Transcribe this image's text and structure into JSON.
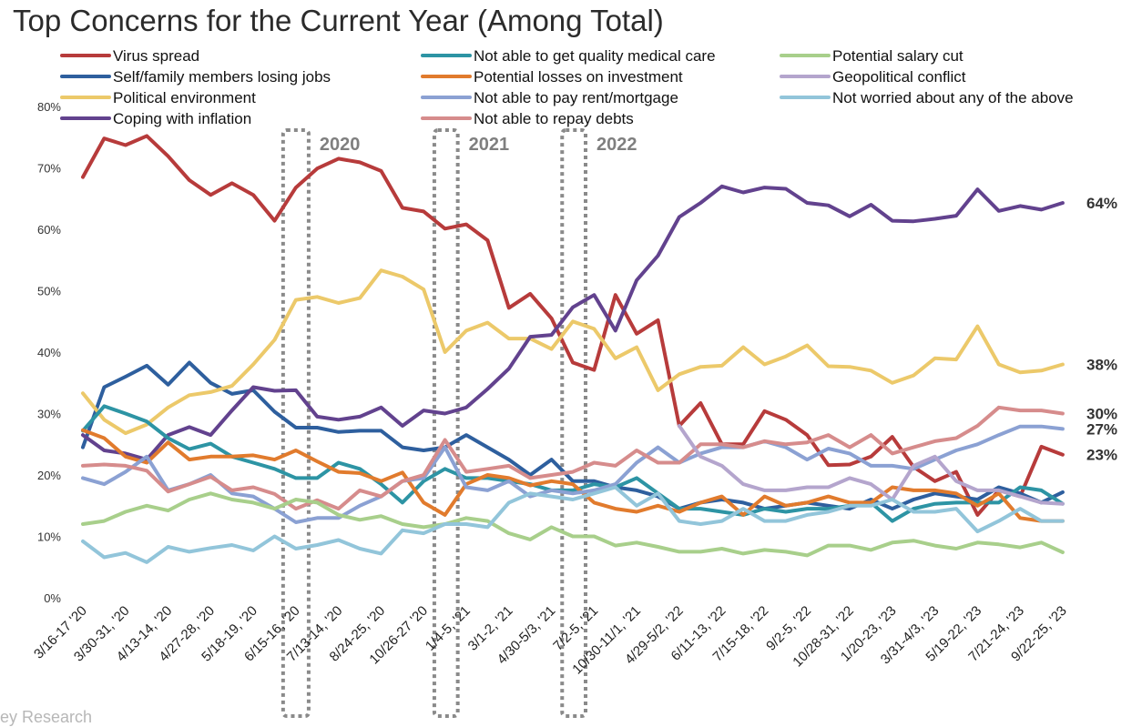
{
  "chart_data": {
    "type": "line",
    "title": "Top Concerns for the Current Year (Among Total)",
    "source_text": "ey Research",
    "ylim": [
      0,
      80
    ],
    "yticks": [
      0,
      10,
      20,
      30,
      40,
      50,
      60,
      70,
      80
    ],
    "ytick_labels": [
      "0%",
      "10%",
      "20%",
      "30%",
      "40%",
      "50%",
      "60%",
      "70%",
      "80%"
    ],
    "x_tick_labels": [
      "3/16-17 '20",
      "3/30-31, '20",
      "4/13-14, '20",
      "4/27-28, '20",
      "5/18-19, '20",
      "6/15-16, '20",
      "7/13-14, '20",
      "8/24-25, '20",
      "10/26-27 '20",
      "1/4-5, '21",
      "3/1-2, '21",
      "4/30-5/3, '21",
      "7/2-5, '21",
      "10/30-11/1, '21",
      "4/29-5/2, '22",
      "6/11-13, '22",
      "7/15-18, '22",
      "9/2-5, '22",
      "10/28-31, '22",
      "1/20-23, '23",
      "3/31-4/3, '23",
      "5/19-22, '23",
      "7/21-24, '23",
      "9/22-25, '23"
    ],
    "legend_position": "top",
    "year_markers": [
      {
        "label": "2020",
        "from_index": 9.4,
        "to_index": 10.6
      },
      {
        "label": "2021",
        "from_index": 16.5,
        "to_index": 17.6
      },
      {
        "label": "2022",
        "from_index": 22.5,
        "to_index": 23.6
      }
    ],
    "series": [
      {
        "name": "Virus spread",
        "color": "#b73b3b",
        "end_label": "23%",
        "values": [
          68.5,
          74.8,
          73.7,
          75.2,
          71.9,
          68.0,
          65.6,
          67.5,
          65.6,
          61.4,
          66.8,
          69.9,
          71.5,
          70.9,
          69.5,
          63.5,
          62.9,
          60.1,
          60.8,
          58.2,
          47.2,
          49.5,
          45.5,
          38.3,
          37.1,
          49.3,
          43.0,
          45.2,
          28.0,
          31.7,
          25.0,
          25.0,
          30.4,
          29.0,
          26.5,
          21.6,
          21.7,
          23.0,
          26.2,
          21.3,
          19.0,
          20.5,
          13.5,
          17.5,
          16.5,
          24.6,
          23.3
        ]
      },
      {
        "name": "Self/family members losing jobs",
        "color": "#2e5f9e",
        "values": [
          24.5,
          34.3,
          36.0,
          37.8,
          34.7,
          38.3,
          35.0,
          33.2,
          33.8,
          30.3,
          27.7,
          27.7,
          27.0,
          27.2,
          27.2,
          24.5,
          24.0,
          24.5,
          26.5,
          24.5,
          22.5,
          20.0,
          22.5,
          19.0,
          19.0,
          18.0,
          17.5,
          16.5,
          14.5,
          15.5,
          16.0,
          15.5,
          14.5,
          15.0,
          15.5,
          15.0,
          14.5,
          16.0,
          14.5,
          16.0,
          17.0,
          16.5,
          16.0,
          18.0,
          17.0,
          15.5,
          17.2
        ]
      },
      {
        "name": "Political environment",
        "color": "#ecc96a",
        "end_label": "38%",
        "values": [
          33.3,
          29.0,
          26.8,
          28.2,
          31.0,
          33.0,
          33.5,
          34.5,
          38.0,
          42.0,
          48.5,
          49.0,
          48.0,
          48.8,
          53.3,
          52.3,
          50.2,
          40.0,
          43.5,
          44.8,
          42.2,
          42.2,
          40.5,
          45.0,
          43.8,
          39.0,
          40.8,
          33.8,
          36.4,
          37.6,
          37.8,
          40.8,
          38.0,
          39.3,
          41.1,
          37.7,
          37.6,
          37.0,
          35.0,
          36.2,
          39.0,
          38.8,
          44.2,
          38.0,
          36.7,
          37.0,
          38.0
        ]
      },
      {
        "name": "Coping with inflation",
        "color": "#62428e",
        "end_label": "64%",
        "values": [
          26.5,
          24.0,
          23.5,
          22.5,
          26.5,
          27.8,
          26.5,
          30.5,
          34.3,
          33.7,
          33.8,
          29.5,
          29.0,
          29.5,
          31.0,
          28.0,
          30.5,
          30.0,
          31.0,
          34.0,
          37.3,
          42.5,
          42.8,
          47.3,
          49.3,
          43.5,
          51.7,
          55.7,
          62.0,
          64.3,
          67.0,
          66.0,
          66.8,
          66.6,
          64.3,
          63.9,
          62.1,
          64.0,
          61.4,
          61.3,
          61.7,
          62.2,
          66.5,
          63.0,
          63.8,
          63.2,
          64.3
        ]
      },
      {
        "name": "Not able to get quality medical care",
        "color": "#2d94a4",
        "values": [
          27.2,
          31.2,
          30.0,
          28.7,
          26.0,
          24.2,
          25.1,
          23.0,
          22.0,
          21.0,
          19.5,
          19.5,
          22.0,
          21.0,
          18.5,
          15.5,
          19.0,
          21.0,
          19.5,
          19.5,
          19.0,
          18.5,
          17.5,
          17.5,
          18.5,
          18.0,
          19.5,
          17.0,
          14.5,
          14.5,
          14.0,
          13.5,
          14.5,
          14.0,
          14.5,
          14.5,
          15.0,
          15.5,
          12.5,
          14.5,
          15.3,
          15.5,
          15.5,
          15.5,
          18.0,
          17.5,
          15.3
        ]
      },
      {
        "name": "Potential losses on investment",
        "color": "#e17b2d",
        "values": [
          27.3,
          26.0,
          23.0,
          22.0,
          25.3,
          22.5,
          23.0,
          23.0,
          23.2,
          22.5,
          24.0,
          22.2,
          20.5,
          20.3,
          19.0,
          20.4,
          15.5,
          13.5,
          18.5,
          20.0,
          19.5,
          18.3,
          19.0,
          18.5,
          15.5,
          14.5,
          14.0,
          15.0,
          14.0,
          15.5,
          16.5,
          13.5,
          16.5,
          15.0,
          15.5,
          16.5,
          15.5,
          15.5,
          18.0,
          17.5,
          17.5,
          17.0,
          15.0,
          17.0,
          13.0,
          12.5,
          12.5
        ]
      },
      {
        "name": "Not able to pay rent/mortgage",
        "color": "#8ba1d3",
        "end_label": "27%",
        "values": [
          19.5,
          18.5,
          20.5,
          23.0,
          17.5,
          18.5,
          20.0,
          17.0,
          16.5,
          14.5,
          12.3,
          13.0,
          13.0,
          15.0,
          16.5,
          19.0,
          19.5,
          24.5,
          18.0,
          17.5,
          19.0,
          16.5,
          17.5,
          17.0,
          17.5,
          18.5,
          22.0,
          24.5,
          22.0,
          23.5,
          24.5,
          24.5,
          25.5,
          24.5,
          22.5,
          24.3,
          23.5,
          21.5,
          21.5,
          21.0,
          22.5,
          24.0,
          25.0,
          26.5,
          27.9,
          27.9,
          27.5
        ]
      },
      {
        "name": "Not able to repay debts",
        "color": "#d68c8c",
        "end_label": "30%",
        "values": [
          21.5,
          21.7,
          21.5,
          20.7,
          17.3,
          18.5,
          19.7,
          17.5,
          18.0,
          16.9,
          14.5,
          15.9,
          14.5,
          17.5,
          16.5,
          19.0,
          20.0,
          25.7,
          20.5,
          21.0,
          21.5,
          19.5,
          20.0,
          20.5,
          22.0,
          21.5,
          24.0,
          22.0,
          22.0,
          25.0,
          25.0,
          24.5,
          25.5,
          25.0,
          25.3,
          26.5,
          24.5,
          26.5,
          23.5,
          24.5,
          25.5,
          26.0,
          28.0,
          31.0,
          30.5,
          30.5,
          30.0
        ]
      },
      {
        "name": "Potential salary cut",
        "color": "#a8cf8b",
        "values": [
          12.0,
          12.5,
          14.0,
          15.0,
          14.2,
          16.0,
          17.0,
          16.0,
          15.5,
          14.5,
          16.0,
          15.5,
          13.5,
          12.7,
          13.3,
          12.0,
          11.5,
          12.0,
          13.0,
          12.5,
          10.5,
          9.5,
          11.5,
          10.0,
          10.0,
          8.5,
          9.0,
          8.3,
          7.5,
          7.5,
          8.0,
          7.2,
          7.8,
          7.5,
          6.9,
          8.5,
          8.5,
          7.8,
          9.0,
          9.3,
          8.5,
          8.0,
          9.0,
          8.7,
          8.2,
          9.0,
          7.4
        ]
      },
      {
        "name": "Geopolitical conflict",
        "color": "#b4a5cd",
        "values": [
          null,
          null,
          null,
          null,
          null,
          null,
          null,
          null,
          null,
          null,
          null,
          null,
          null,
          null,
          null,
          null,
          null,
          null,
          null,
          null,
          null,
          null,
          null,
          null,
          null,
          null,
          null,
          null,
          28.0,
          23.0,
          21.5,
          18.5,
          17.5,
          17.5,
          18.0,
          18.0,
          19.5,
          18.5,
          16.0,
          21.5,
          23.0,
          19.0,
          17.5,
          17.5,
          16.5,
          15.5,
          15.3
        ]
      },
      {
        "name": "Not worried about any of the above",
        "color": "#92c5da",
        "values": [
          9.2,
          6.6,
          7.3,
          5.8,
          8.3,
          7.5,
          8.1,
          8.6,
          7.7,
          10.0,
          8.0,
          8.6,
          9.4,
          8.0,
          7.2,
          11.0,
          10.5,
          12.0,
          12.0,
          11.5,
          15.5,
          17.0,
          16.5,
          16.0,
          17.0,
          18.0,
          15.0,
          17.0,
          12.5,
          12.0,
          12.5,
          14.5,
          12.5,
          12.5,
          13.5,
          14.0,
          15.0,
          15.0,
          16.0,
          14.0,
          14.0,
          14.5,
          10.8,
          12.5,
          14.5,
          12.5,
          12.5
        ]
      }
    ]
  }
}
